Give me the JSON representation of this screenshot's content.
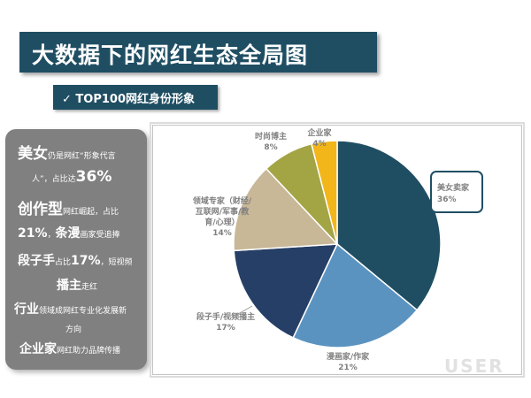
{
  "header": {
    "title": "大数据下的网红生态全局图",
    "subtitle": "✓ TOP100网红身份形象"
  },
  "summary": {
    "l1_big": "美女",
    "l1_small": "仍是网红“形象代言",
    "l2_small": "人”，占比达",
    "l2_big": "36%",
    "l3_big": "创作型",
    "l3_small": "网红崛起，占比",
    "l4_mid": "21%",
    "l4_small1": "，",
    "l4_big": "条漫",
    "l4_small2": "画家受追捧",
    "l5_big": "段子手",
    "l5_small1": "占比",
    "l5_mid": "17%",
    "l5_small2": "，短视频",
    "l6_mid": "播主",
    "l6_small": "走红",
    "l7_mid": "行业",
    "l7_small": "领域成网红专业化发展新",
    "l8_small": "方向",
    "l9_mid": "企业家",
    "l9_small": "网红助力品牌传播"
  },
  "chart_data": {
    "type": "pie",
    "title": "",
    "start_angle_deg": 0,
    "direction": "clockwise",
    "slices": [
      {
        "label": "美女卖家",
        "value": 36,
        "pct": "36%",
        "color": "#1f4e63"
      },
      {
        "label": "漫画家/作家",
        "value": 21,
        "pct": "21%",
        "color": "#5b93c0"
      },
      {
        "label": "段子手/视频播主",
        "value": 17,
        "pct": "17%",
        "color": "#263f66"
      },
      {
        "label": "领域专家（财经/互联网/军事/教育/心理）",
        "value": 14,
        "pct": "14%",
        "color": "#c8b898"
      },
      {
        "label": "时尚博主",
        "value": 8,
        "pct": "8%",
        "color": "#a3a545"
      },
      {
        "label": "企业家",
        "value": 4,
        "pct": "4%",
        "color": "#f2b51a"
      }
    ],
    "legend": "none"
  },
  "watermark": "USER"
}
